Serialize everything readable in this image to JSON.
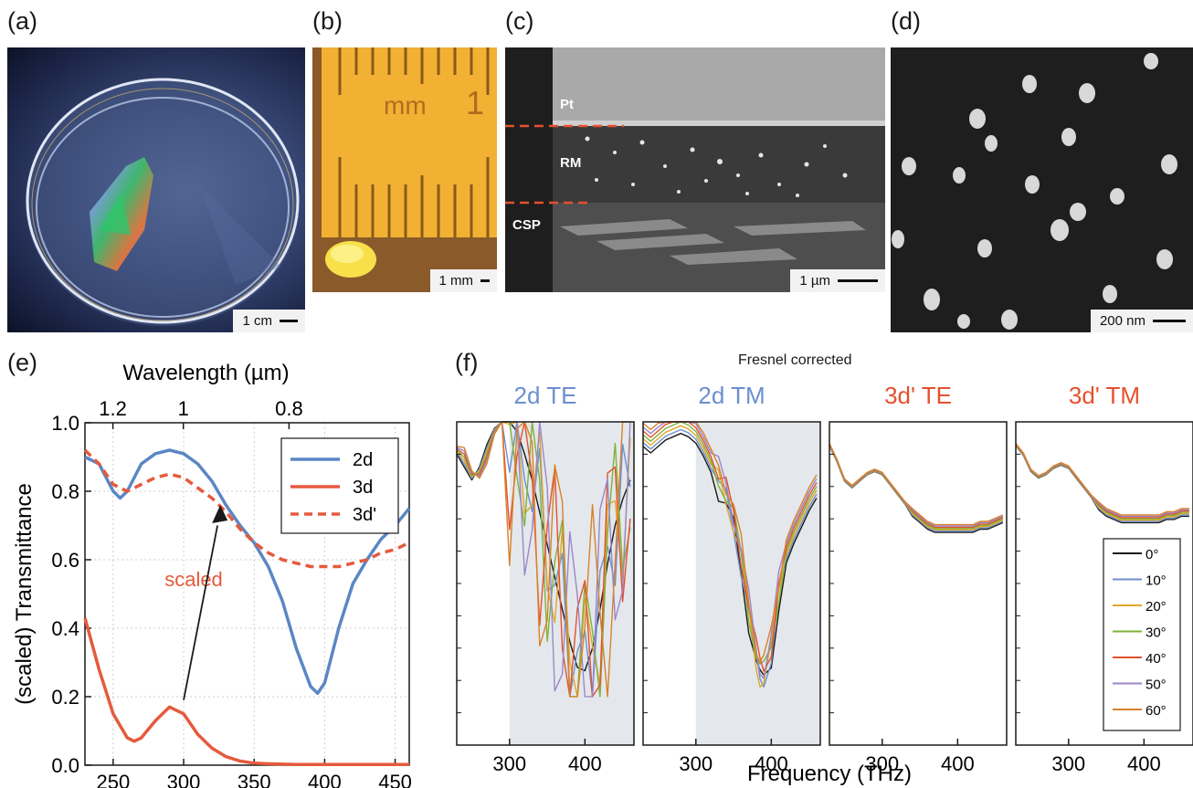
{
  "panels": {
    "a": {
      "label": "(a)",
      "scale": "1 cm"
    },
    "b": {
      "label": "(b)",
      "scale": "1 mm",
      "ruler_unit": "mm",
      "ruler_number": "1"
    },
    "c": {
      "label": "(c)",
      "scale": "1 µm",
      "layers": [
        "Pt",
        "RM",
        "CSP"
      ]
    },
    "d": {
      "label": "(d)",
      "scale": "200 nm"
    },
    "e": {
      "label": "(e)"
    },
    "f": {
      "label": "(f)",
      "header": "Fresnel corrected"
    }
  },
  "chart_data": [
    {
      "type": "line",
      "panel": "e",
      "xlabel": "Frequency (THz)",
      "ylabel": "(scaled) Transmittance",
      "top_axis_label": "Wavelength (µm)",
      "top_ticks": [
        "1.2",
        "1",
        "0.8"
      ],
      "top_tick_wavelengths_um": [
        1.2,
        1.0,
        0.8
      ],
      "xlim": [
        230,
        460
      ],
      "ylim": [
        0,
        1
      ],
      "x_ticks": [
        250,
        300,
        350,
        400,
        450
      ],
      "y_ticks": [
        "0.0",
        "0.2",
        "0.4",
        "0.6",
        "0.8",
        "1.0"
      ],
      "grid": true,
      "legend_position": "top-right",
      "annotation": "scaled",
      "series": [
        {
          "name": "2d",
          "color": "#5b86c5",
          "style": "solid",
          "x": [
            230,
            240,
            250,
            255,
            260,
            270,
            280,
            290,
            300,
            310,
            320,
            330,
            340,
            350,
            360,
            370,
            380,
            390,
            395,
            400,
            410,
            420,
            430,
            440,
            450,
            460
          ],
          "y": [
            0.9,
            0.88,
            0.8,
            0.78,
            0.8,
            0.88,
            0.91,
            0.92,
            0.91,
            0.88,
            0.83,
            0.76,
            0.7,
            0.65,
            0.58,
            0.48,
            0.34,
            0.23,
            0.21,
            0.24,
            0.4,
            0.53,
            0.6,
            0.66,
            0.7,
            0.75
          ]
        },
        {
          "name": "3d",
          "color": "#e55a3c",
          "style": "solid",
          "x": [
            230,
            240,
            250,
            260,
            265,
            270,
            280,
            290,
            300,
            310,
            320,
            330,
            340,
            350,
            360,
            380,
            400,
            420,
            440,
            460
          ],
          "y": [
            0.43,
            0.28,
            0.15,
            0.08,
            0.07,
            0.08,
            0.13,
            0.17,
            0.15,
            0.09,
            0.05,
            0.025,
            0.012,
            0.006,
            0.004,
            0.002,
            0.002,
            0.002,
            0.002,
            0.002
          ]
        },
        {
          "name": "3d'",
          "color": "#e55a3c",
          "style": "dashed",
          "x": [
            230,
            240,
            250,
            260,
            270,
            280,
            290,
            300,
            310,
            320,
            330,
            340,
            350,
            360,
            370,
            380,
            390,
            400,
            410,
            420,
            430,
            440,
            450,
            460
          ],
          "y": [
            0.92,
            0.88,
            0.82,
            0.8,
            0.82,
            0.84,
            0.85,
            0.84,
            0.81,
            0.78,
            0.74,
            0.69,
            0.65,
            0.62,
            0.6,
            0.59,
            0.58,
            0.58,
            0.58,
            0.59,
            0.6,
            0.62,
            0.63,
            0.65
          ]
        }
      ]
    },
    {
      "type": "line",
      "panel": "f",
      "xlabel": "Frequency (THz)",
      "ylim": [
        0,
        1
      ],
      "angles": [
        "0°",
        "10°",
        "20°",
        "30°",
        "40°",
        "50°",
        "60°"
      ],
      "angle_colors": [
        "#1a1a1a",
        "#6c8fcf",
        "#e0a72a",
        "#7fb239",
        "#e4512f",
        "#9b86c9",
        "#d88229"
      ],
      "subplots": [
        {
          "title": "2d TE",
          "title_color": "#6c8fcf",
          "x_ticks": [
            300,
            400
          ],
          "xlim": [
            230,
            465
          ],
          "shaded_from": 300,
          "kind": "osc",
          "base": {
            "x": [
              230,
              240,
              250,
              260,
              270,
              280,
              290,
              300,
              310,
              320,
              330,
              340,
              350,
              360,
              370,
              380,
              390,
              400,
              410,
              420,
              430,
              440,
              450,
              460
            ],
            "y": [
              0.9,
              0.86,
              0.82,
              0.86,
              0.93,
              0.98,
              1.0,
              1.0,
              0.97,
              0.9,
              0.82,
              0.72,
              0.62,
              0.52,
              0.42,
              0.32,
              0.24,
              0.23,
              0.3,
              0.42,
              0.56,
              0.68,
              0.76,
              0.82
            ]
          }
        },
        {
          "title": "2d TM",
          "title_color": "#6c8fcf",
          "x_ticks": [
            300,
            400
          ],
          "xlim": [
            230,
            465
          ],
          "shaded_from": 300,
          "kind": "dip",
          "base": {
            "x": [
              230,
              240,
              250,
              260,
              270,
              280,
              290,
              300,
              310,
              320,
              330,
              340,
              350,
              360,
              370,
              380,
              385,
              390,
              400,
              410,
              420,
              430,
              440,
              450,
              460
            ],
            "y": [
              0.96,
              0.94,
              0.96,
              0.98,
              0.99,
              1.0,
              0.99,
              0.97,
              0.93,
              0.88,
              0.83,
              0.78,
              0.7,
              0.58,
              0.42,
              0.28,
              0.23,
              0.22,
              0.3,
              0.48,
              0.6,
              0.66,
              0.71,
              0.76,
              0.8
            ]
          }
        },
        {
          "title": "3d' TE",
          "title_color": "#e4512f",
          "x_ticks": [
            300,
            400
          ],
          "xlim": [
            230,
            465
          ],
          "shaded_from": null,
          "kind": "smooth",
          "base": {
            "x": [
              230,
              240,
              250,
              260,
              270,
              280,
              290,
              300,
              310,
              320,
              330,
              340,
              350,
              360,
              370,
              380,
              390,
              400,
              410,
              420,
              430,
              440,
              450,
              460
            ],
            "y": [
              0.93,
              0.88,
              0.82,
              0.8,
              0.82,
              0.84,
              0.85,
              0.84,
              0.81,
              0.78,
              0.75,
              0.72,
              0.7,
              0.68,
              0.67,
              0.67,
              0.67,
              0.67,
              0.67,
              0.67,
              0.68,
              0.68,
              0.69,
              0.7
            ]
          }
        },
        {
          "title": "3d' TM",
          "title_color": "#e4512f",
          "x_ticks": [
            300,
            400
          ],
          "xlim": [
            230,
            465
          ],
          "shaded_from": null,
          "kind": "smooth",
          "base": {
            "x": [
              230,
              240,
              250,
              260,
              270,
              280,
              290,
              300,
              310,
              320,
              330,
              340,
              350,
              360,
              370,
              380,
              390,
              400,
              410,
              420,
              430,
              440,
              450,
              460
            ],
            "y": [
              0.93,
              0.9,
              0.85,
              0.83,
              0.84,
              0.86,
              0.87,
              0.86,
              0.83,
              0.8,
              0.77,
              0.74,
              0.72,
              0.71,
              0.7,
              0.7,
              0.7,
              0.7,
              0.7,
              0.7,
              0.71,
              0.71,
              0.72,
              0.72
            ]
          }
        }
      ]
    }
  ]
}
